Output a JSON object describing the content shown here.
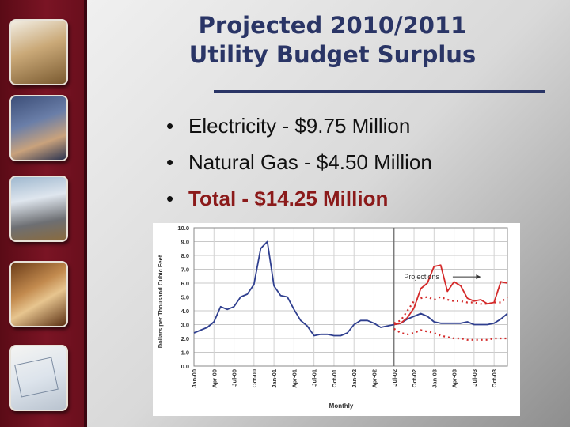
{
  "slide": {
    "title_line1": "Projected 2010/2011",
    "title_line2": "Utility Budget Surplus",
    "bullets": [
      {
        "text": "Electricity - $9.75 Million",
        "emphasis": false
      },
      {
        "text": "Natural Gas - $4.50 Million",
        "emphasis": false
      },
      {
        "text": "Total - $14.25 Million",
        "emphasis": true
      }
    ],
    "bullet_glyph": "•"
  },
  "sidebar": {
    "photos": [
      "engineer-photo",
      "control-panel-photo",
      "power-plant-workers-photo",
      "cables-photo",
      "blueprint-photo"
    ]
  },
  "colors": {
    "title": "#2a3566",
    "total_text": "#8b1a1a",
    "sidebar": "#6e1020",
    "series_history": "#2f3f8f",
    "series_projection": "#d42a2a"
  },
  "chart_data": {
    "type": "line",
    "ylabel": "Dollars per Thousand Cubic Feet",
    "xlabel": "Monthly",
    "ylim": [
      0,
      10
    ],
    "yticks": [
      "0.0",
      "1.0",
      "2.0",
      "3.0",
      "4.0",
      "5.0",
      "6.0",
      "7.0",
      "8.0",
      "9.0",
      "10.0"
    ],
    "x_tick_labels": [
      "Jan-00",
      "Apr-00",
      "Jul-00",
      "Oct-00",
      "Jan-01",
      "Apr-01",
      "Jul-01",
      "Oct-01",
      "Jan-02",
      "Apr-02",
      "Jul-02",
      "Oct-02",
      "Jan-03",
      "Apr-03",
      "Jul-03",
      "Oct-03"
    ],
    "grid": true,
    "annotation": "Projections",
    "projection_start_month": 30,
    "series": [
      {
        "style": "solid-blue",
        "x": [
          0,
          1,
          2,
          3,
          4,
          5,
          6,
          7,
          8,
          9,
          10,
          11,
          12,
          13,
          14,
          15,
          16,
          17,
          18,
          19,
          20,
          21,
          22,
          23,
          24,
          25,
          26,
          27,
          28,
          29,
          30,
          31,
          32,
          33,
          34,
          35,
          36,
          37,
          38,
          39,
          40,
          41,
          42,
          43,
          44,
          45,
          46,
          47
        ],
        "y": [
          2.4,
          2.6,
          2.8,
          3.2,
          4.3,
          4.1,
          4.3,
          5.0,
          5.2,
          5.9,
          8.5,
          9.0,
          5.8,
          5.1,
          5.0,
          4.1,
          3.3,
          2.9,
          2.2,
          2.3,
          2.3,
          2.2,
          2.2,
          2.4,
          3.0,
          3.3,
          3.3,
          3.1,
          2.8,
          2.9,
          3.0,
          3.1,
          3.4,
          3.6,
          3.8,
          3.6,
          3.2,
          3.1,
          3.1,
          3.1,
          3.1,
          3.2,
          3.0,
          3.0,
          3.0,
          3.1,
          3.4,
          3.8
        ]
      },
      {
        "style": "solid-red",
        "x": [
          30,
          31,
          32,
          33,
          34,
          35,
          36,
          37,
          38,
          39,
          40,
          41,
          42,
          43,
          44,
          45,
          46,
          47
        ],
        "y": [
          3.0,
          3.1,
          3.5,
          4.2,
          5.6,
          6.0,
          7.2,
          7.3,
          5.4,
          6.1,
          5.8,
          4.9,
          4.7,
          4.8,
          4.5,
          4.6,
          6.1,
          6.0
        ]
      },
      {
        "style": "dotted-red",
        "x": [
          30,
          31,
          32,
          33,
          34,
          35,
          36,
          37,
          38,
          39,
          40,
          41,
          42,
          43,
          44,
          45,
          46,
          47
        ],
        "y": [
          3.1,
          3.3,
          4.0,
          4.7,
          4.9,
          5.0,
          4.8,
          5.0,
          4.8,
          4.7,
          4.7,
          4.6,
          4.6,
          4.5,
          4.5,
          4.6,
          4.6,
          5.0
        ]
      },
      {
        "style": "dotted-red",
        "x": [
          30,
          31,
          32,
          33,
          34,
          35,
          36,
          37,
          38,
          39,
          40,
          41,
          42,
          43,
          44,
          45,
          46,
          47
        ],
        "y": [
          2.7,
          2.4,
          2.3,
          2.4,
          2.6,
          2.5,
          2.4,
          2.2,
          2.1,
          2.0,
          2.0,
          1.9,
          1.9,
          1.9,
          1.9,
          2.0,
          2.0,
          2.0
        ]
      }
    ]
  }
}
